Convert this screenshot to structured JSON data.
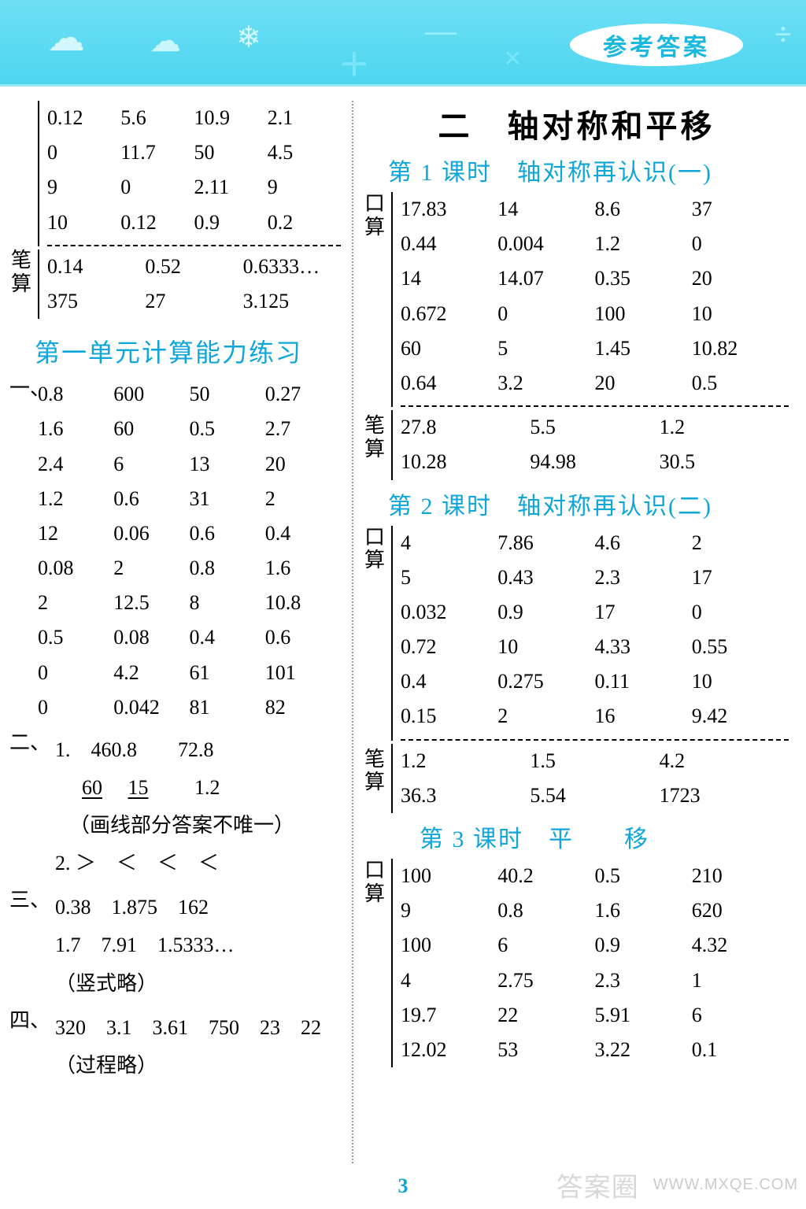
{
  "banner": {
    "badge": "参考答案"
  },
  "pagenum": "3",
  "watermark": {
    "cn": "答案圈",
    "url": "WWW.MXQE.COM"
  },
  "left": {
    "top": {
      "kousuan_rows": [
        [
          "0.12",
          "5.6",
          "10.9",
          "2.1"
        ],
        [
          "0",
          "11.7",
          "50",
          "4.5"
        ],
        [
          "9",
          "0",
          "2.11",
          "9"
        ],
        [
          "10",
          "0.12",
          "0.9",
          "0.2"
        ]
      ],
      "bisuan_rows": [
        [
          "0.14",
          "0.52",
          "0.6333…"
        ],
        [
          "375",
          "27",
          "3.125"
        ]
      ]
    },
    "unit_title": "第一单元计算能力练习",
    "sec1_rows": [
      [
        "0.8",
        "600",
        "50",
        "0.27"
      ],
      [
        "1.6",
        "60",
        "0.5",
        "2.7"
      ],
      [
        "2.4",
        "6",
        "13",
        "20"
      ],
      [
        "1.2",
        "0.6",
        "31",
        "2"
      ],
      [
        "12",
        "0.06",
        "0.6",
        "0.4"
      ],
      [
        "0.08",
        "2",
        "0.8",
        "1.6"
      ],
      [
        "2",
        "12.5",
        "8",
        "10.8"
      ],
      [
        "0.5",
        "0.08",
        "0.4",
        "0.6"
      ],
      [
        "0",
        "4.2",
        "61",
        "101"
      ],
      [
        "0",
        "0.042",
        "81",
        "82"
      ]
    ],
    "sec2": {
      "l1a": "1.　460.8　　72.8",
      "l1b_a": "60",
      "l1b_b": "15",
      "l1b_c": "1.2",
      "note": "（画线部分答案不唯一）",
      "l2": "2. ＞　＜　＜　＜"
    },
    "sec3": {
      "l1": "0.38　1.875　162",
      "l2": "1.7　7.91　1.5333…",
      "note": "（竖式略）"
    },
    "sec4": {
      "l1": "320　3.1　3.61　750　23　22",
      "note": "（过程略）"
    }
  },
  "right": {
    "chapter": "二　轴对称和平移",
    "lesson1": {
      "title": "第 1 课时　轴对称再认识(一)",
      "kousuan": [
        [
          "17.83",
          "14",
          "8.6",
          "37"
        ],
        [
          "0.44",
          "0.004",
          "1.2",
          "0"
        ],
        [
          "14",
          "14.07",
          "0.35",
          "20"
        ],
        [
          "0.672",
          "0",
          "100",
          "10"
        ],
        [
          "60",
          "5",
          "1.45",
          "10.82"
        ],
        [
          "0.64",
          "3.2",
          "20",
          "0.5"
        ]
      ],
      "bisuan": [
        [
          "27.8",
          "5.5",
          "1.2"
        ],
        [
          "10.28",
          "94.98",
          "30.5"
        ]
      ]
    },
    "lesson2": {
      "title": "第 2 课时　轴对称再认识(二)",
      "kousuan": [
        [
          "4",
          "7.86",
          "4.6",
          "2"
        ],
        [
          "5",
          "0.43",
          "2.3",
          "17"
        ],
        [
          "0.032",
          "0.9",
          "17",
          "0"
        ],
        [
          "0.72",
          "10",
          "4.33",
          "0.55"
        ],
        [
          "0.4",
          "0.275",
          "0.11",
          "10"
        ],
        [
          "0.15",
          "2",
          "16",
          "9.42"
        ]
      ],
      "bisuan": [
        [
          "1.2",
          "1.5",
          "4.2"
        ],
        [
          "36.3",
          "5.54",
          "1723"
        ]
      ]
    },
    "lesson3": {
      "title": "第 3 课时　平　　移",
      "kousuan": [
        [
          "100",
          "40.2",
          "0.5",
          "210"
        ],
        [
          "9",
          "0.8",
          "1.6",
          "620"
        ],
        [
          "100",
          "6",
          "0.9",
          "4.32"
        ],
        [
          "4",
          "2.75",
          "2.3",
          "1"
        ],
        [
          "19.7",
          "22",
          "5.91",
          "6"
        ],
        [
          "12.02",
          "53",
          "3.22",
          "0.1"
        ]
      ]
    }
  },
  "labels": {
    "kousuan": "口算",
    "bisuan": "笔算",
    "yi": "一、",
    "er": "二、",
    "san": "三、",
    "si": "四、"
  }
}
